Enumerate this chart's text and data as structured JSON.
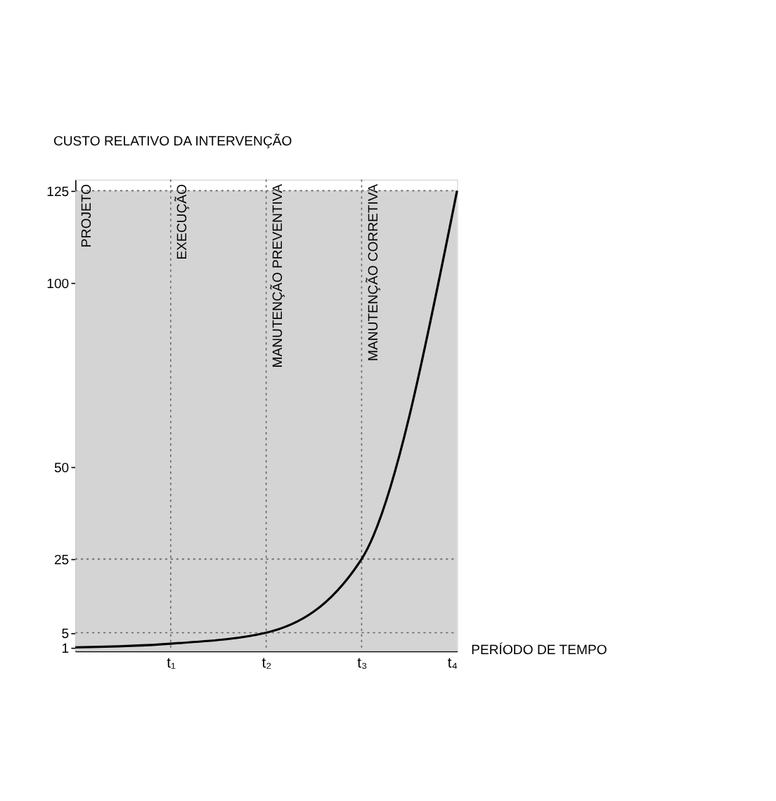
{
  "chart_data": {
    "type": "line",
    "xlabel": "PERÍODO DE TEMPO",
    "ylabel": "CUSTO RELATIVO DA INTERVENÇÃO",
    "categories": [
      null,
      "t₁",
      "t₂",
      "t₃",
      "t₄"
    ],
    "series": [
      {
        "color": "#000000",
        "values": [
          1,
          2,
          5,
          25,
          125
        ]
      }
    ],
    "ylim": [
      0,
      128
    ],
    "yticks": [
      1,
      5,
      25,
      50,
      100,
      125
    ],
    "grid": false,
    "marker": "none",
    "line_style": "solid",
    "bands": [
      {
        "axis": "y",
        "from": 0,
        "to": 125,
        "color": "#d4d4d4"
      }
    ],
    "ref_lines": [
      {
        "axis": "x",
        "value": "t₁",
        "label": "EXECUÇÃO",
        "line_style": "dotted",
        "color": "#666666"
      },
      {
        "axis": "x",
        "value": "t₂",
        "label": "MANUTENÇÃO PREVENTIVA",
        "line_style": "dotted",
        "color": "#666666"
      },
      {
        "axis": "x",
        "value": "t₃",
        "label": "MANUTENÇÃO CORRETIVA",
        "line_style": "dotted",
        "color": "#666666"
      },
      {
        "axis": "y",
        "value": 5,
        "line_style": "dotted",
        "color": "#666666"
      },
      {
        "axis": "y",
        "value": 25,
        "line_style": "dotted",
        "color": "#666666"
      },
      {
        "axis": "y",
        "value": 125,
        "line_style": "dotted",
        "color": "#666666"
      }
    ],
    "annotations": [
      "PROJETO"
    ]
  }
}
